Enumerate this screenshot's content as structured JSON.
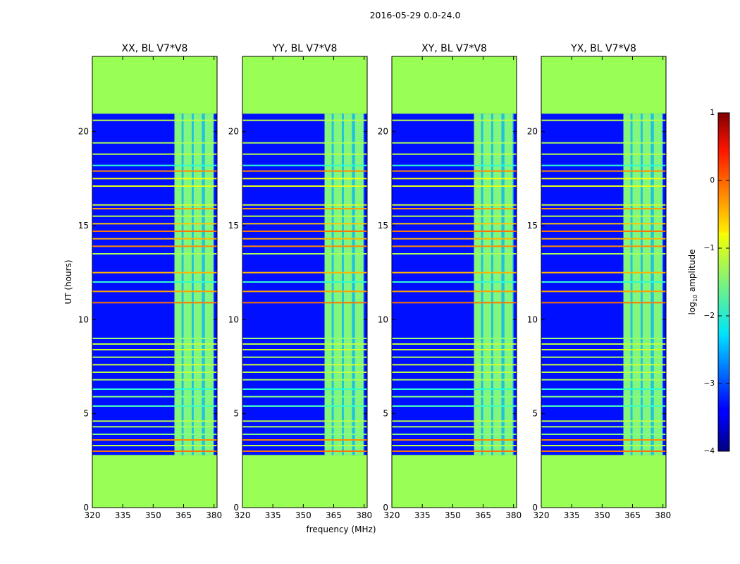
{
  "chart_data": {
    "type": "heatmap",
    "title": "2016-05-29 0.0-24.0",
    "panels": [
      {
        "title": "XX, BL V7*V8"
      },
      {
        "title": "YY, BL V7*V8"
      },
      {
        "title": "XY, BL V7*V8"
      },
      {
        "title": "YX, BL V7*V8"
      }
    ],
    "xlabel": "frequency (MHz)",
    "ylabel": "UT (hours)",
    "xlim": [
      320,
      381.5
    ],
    "ylim": [
      0,
      24
    ],
    "xticks": [
      "320",
      "335",
      "350",
      "365",
      "380"
    ],
    "xtick_values": [
      320,
      335,
      350,
      365,
      380
    ],
    "yticks": [
      "0",
      "5",
      "10",
      "15",
      "20"
    ],
    "ytick_values": [
      0,
      5,
      10,
      15,
      20
    ],
    "data_time_range": [
      2.8,
      20.95
    ],
    "flagged_level": -1.2,
    "background_level": -3.3,
    "rfi_band_mhz": [
      360.5,
      380
    ],
    "rfi_subbands_mhz": [
      [
        360.5,
        364
      ],
      [
        365,
        369
      ],
      [
        370,
        374
      ],
      [
        375.5,
        379.5
      ]
    ],
    "lines": [
      {
        "t": 3.0,
        "v": -0.2
      },
      {
        "t": 3.3,
        "v": -1.2
      },
      {
        "t": 3.6,
        "v": -0.3
      },
      {
        "t": 3.9,
        "v": -1.5
      },
      {
        "t": 4.3,
        "v": -1.3
      },
      {
        "t": 4.6,
        "v": -1.2
      },
      {
        "t": 5.4,
        "v": -1.8
      },
      {
        "t": 5.9,
        "v": -1.5
      },
      {
        "t": 6.3,
        "v": -1.9
      },
      {
        "t": 6.8,
        "v": -1.3
      },
      {
        "t": 7.2,
        "v": -1.2
      },
      {
        "t": 7.6,
        "v": -1.1
      },
      {
        "t": 8.0,
        "v": -1.3
      },
      {
        "t": 8.4,
        "v": -1.1
      },
      {
        "t": 8.7,
        "v": -1.2
      },
      {
        "t": 9.0,
        "v": -1.4
      },
      {
        "t": 10.9,
        "v": -0.2
      },
      {
        "t": 11.5,
        "v": -0.4
      },
      {
        "t": 12.0,
        "v": -1.9
      },
      {
        "t": 12.5,
        "v": -0.5
      },
      {
        "t": 13.5,
        "v": -1.3
      },
      {
        "t": 13.9,
        "v": -0.3
      },
      {
        "t": 14.3,
        "v": -0.5
      },
      {
        "t": 14.7,
        "v": -0.2
      },
      {
        "t": 15.1,
        "v": -0.6
      },
      {
        "t": 15.5,
        "v": -1.2
      },
      {
        "t": 15.9,
        "v": -0.4
      },
      {
        "t": 16.1,
        "v": -1.1
      },
      {
        "t": 17.1,
        "v": -1.0
      },
      {
        "t": 17.5,
        "v": -0.9
      },
      {
        "t": 17.9,
        "v": -0.3
      },
      {
        "t": 18.2,
        "v": -1.9
      },
      {
        "t": 18.8,
        "v": -1.2
      },
      {
        "t": 19.4,
        "v": -1.3
      },
      {
        "t": 20.6,
        "v": -1.2
      }
    ],
    "colorbar": {
      "label": "log10 amplitude",
      "range": [
        -4,
        1
      ],
      "tick_values": [
        1,
        0,
        -1,
        -2,
        -3,
        -4
      ],
      "tick_labels": [
        "1",
        "0",
        "−1",
        "−2",
        "−3",
        "−4"
      ]
    },
    "flagged_color": "#99ff55"
  }
}
